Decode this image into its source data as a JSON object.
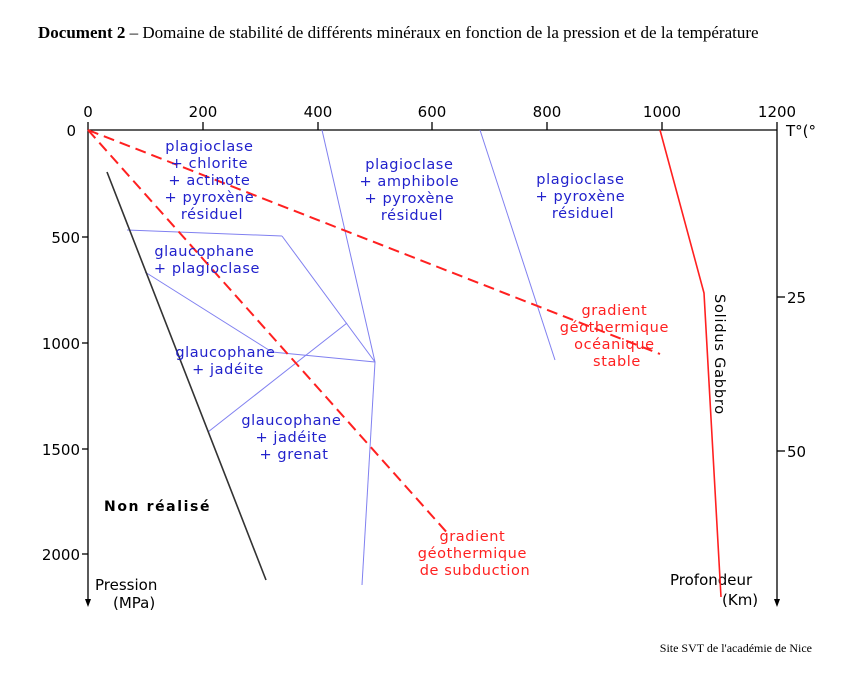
{
  "caption": {
    "label": "Document 2",
    "text": " – Domaine de stabilité de différents minéraux en fonction de la pression et de la température"
  },
  "axes": {
    "top": {
      "ticks": [
        "0",
        "200",
        "400",
        "600",
        "800",
        "1000",
        "1200"
      ],
      "unit": "T°(°"
    },
    "left": {
      "ticks": [
        "0",
        "500",
        "1000",
        "1500",
        "2000"
      ],
      "label_line1": "Pression",
      "label_line2": "(MPa)"
    },
    "right": {
      "ticks": [
        "25",
        "50"
      ],
      "label_line1": "Profondeur",
      "label_line2": "(Km)"
    }
  },
  "fields": [
    [
      "plagioclase",
      "+ chlorite",
      "+ actinote",
      "+ pyroxène",
      "résiduel"
    ],
    [
      "plagioclase",
      "+ amphibole",
      "+ pyroxène",
      "résiduel"
    ],
    [
      "plagioclase",
      "+ pyroxène",
      "résiduel"
    ],
    [
      "glaucophane",
      "+ plagioclase"
    ],
    [
      "glaucophane",
      "+ jadéite"
    ],
    [
      "glaucophane",
      "+ jadéite",
      "+ grenat"
    ]
  ],
  "gradients": {
    "oceanic": [
      "gradient",
      "géothermique",
      "océanique",
      "stable"
    ],
    "subduction": [
      "gradient",
      "géothermique",
      "de subduction"
    ]
  },
  "solidus_label": "Solidus Gabbro",
  "unrealized_label": "Non réalisé",
  "credit": "Site SVT de l'académie de Nice",
  "colors": {
    "field_text": "#2222cc",
    "field_lines": "#8080f0",
    "gradient_red": "#ff2020",
    "axis": "#000000",
    "unrealized_line": "#333333"
  }
}
